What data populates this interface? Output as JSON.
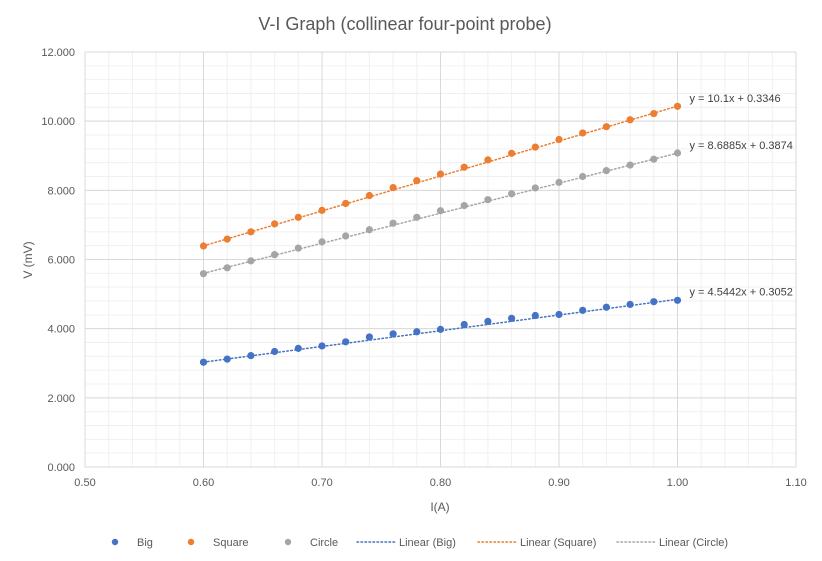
{
  "chart_data": {
    "type": "scatter",
    "title": "V-I Graph (collinear four-point probe)",
    "xlabel": "I(A)",
    "ylabel": "V (mV)",
    "xlim": [
      0.5,
      1.1
    ],
    "ylim": [
      0,
      12
    ],
    "x_ticks": [
      "0.50",
      "0.60",
      "0.70",
      "0.80",
      "0.90",
      "1.00",
      "1.10"
    ],
    "y_ticks": [
      "0.000",
      "2.000",
      "4.000",
      "6.000",
      "8.000",
      "10.000",
      "12.000"
    ],
    "grid": "major and minor",
    "legend_position": "bottom",
    "x": [
      0.6,
      0.62,
      0.64,
      0.66,
      0.68,
      0.7,
      0.72,
      0.74,
      0.76,
      0.78,
      0.8,
      0.82,
      0.84,
      0.86,
      0.88,
      0.9,
      0.92,
      0.94,
      0.96,
      0.98,
      1.0
    ],
    "series": [
      {
        "name": "Big",
        "color": "#4472C4",
        "values": [
          3.03,
          3.12,
          3.22,
          3.34,
          3.43,
          3.5,
          3.62,
          3.76,
          3.85,
          3.91,
          3.98,
          4.12,
          4.21,
          4.3,
          4.38,
          4.41,
          4.53,
          4.62,
          4.7,
          4.78,
          4.82
        ],
        "trendline": {
          "name": "Linear (Big)",
          "slope": 4.5442,
          "intercept": 0.3052,
          "equation": "y = 4.5442x + 0.3052"
        }
      },
      {
        "name": "Square",
        "color": "#ED7D31",
        "values": [
          6.39,
          6.59,
          6.8,
          7.03,
          7.22,
          7.42,
          7.62,
          7.85,
          8.08,
          8.28,
          8.47,
          8.67,
          8.88,
          9.07,
          9.25,
          9.47,
          9.66,
          9.84,
          10.04,
          10.22,
          10.43
        ],
        "trendline": {
          "name": "Linear (Square)",
          "slope": 10.1,
          "intercept": 0.3346,
          "equation": "y = 10.1x + 0.3346"
        }
      },
      {
        "name": "Circle",
        "color": "#A5A5A5",
        "values": [
          5.59,
          5.76,
          5.96,
          6.14,
          6.33,
          6.51,
          6.68,
          6.86,
          7.05,
          7.22,
          7.41,
          7.56,
          7.73,
          7.9,
          8.07,
          8.23,
          8.4,
          8.57,
          8.73,
          8.9,
          9.08
        ],
        "trendline": {
          "name": "Linear (Circle)",
          "slope": 8.6885,
          "intercept": 0.3874,
          "equation": "y = 8.6885x + 0.3874"
        }
      }
    ]
  }
}
